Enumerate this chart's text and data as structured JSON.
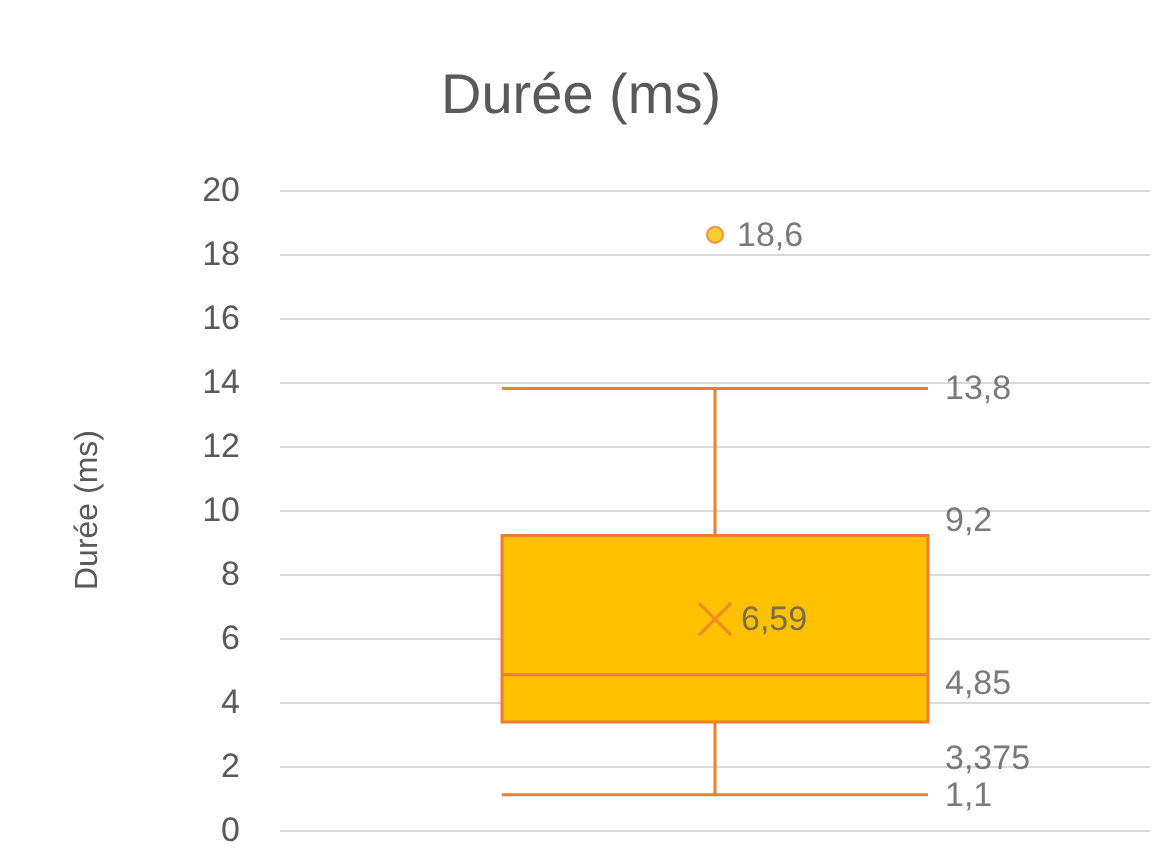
{
  "chart_data": {
    "type": "box",
    "title": "Durée (ms)",
    "ylabel": "Durée (ms)",
    "categories": [
      null
    ],
    "series": [
      {
        "color": "#ffc000",
        "boxes": [
          {
            "low": 1.1,
            "q1": 3.375,
            "median": 4.85,
            "q3": 9.2,
            "high": 13.8,
            "mean": 6.59,
            "outliers": [
              18.6
            ]
          }
        ]
      }
    ],
    "annotations": [
      "18,6",
      "13,8",
      "9,2",
      "6,59",
      "4,85",
      "3,375",
      "1,1"
    ],
    "ylim": [
      0,
      20
    ],
    "yticks": [
      0,
      2,
      4,
      6,
      8,
      10,
      12,
      14,
      16,
      18,
      20
    ],
    "grid": "y"
  }
}
